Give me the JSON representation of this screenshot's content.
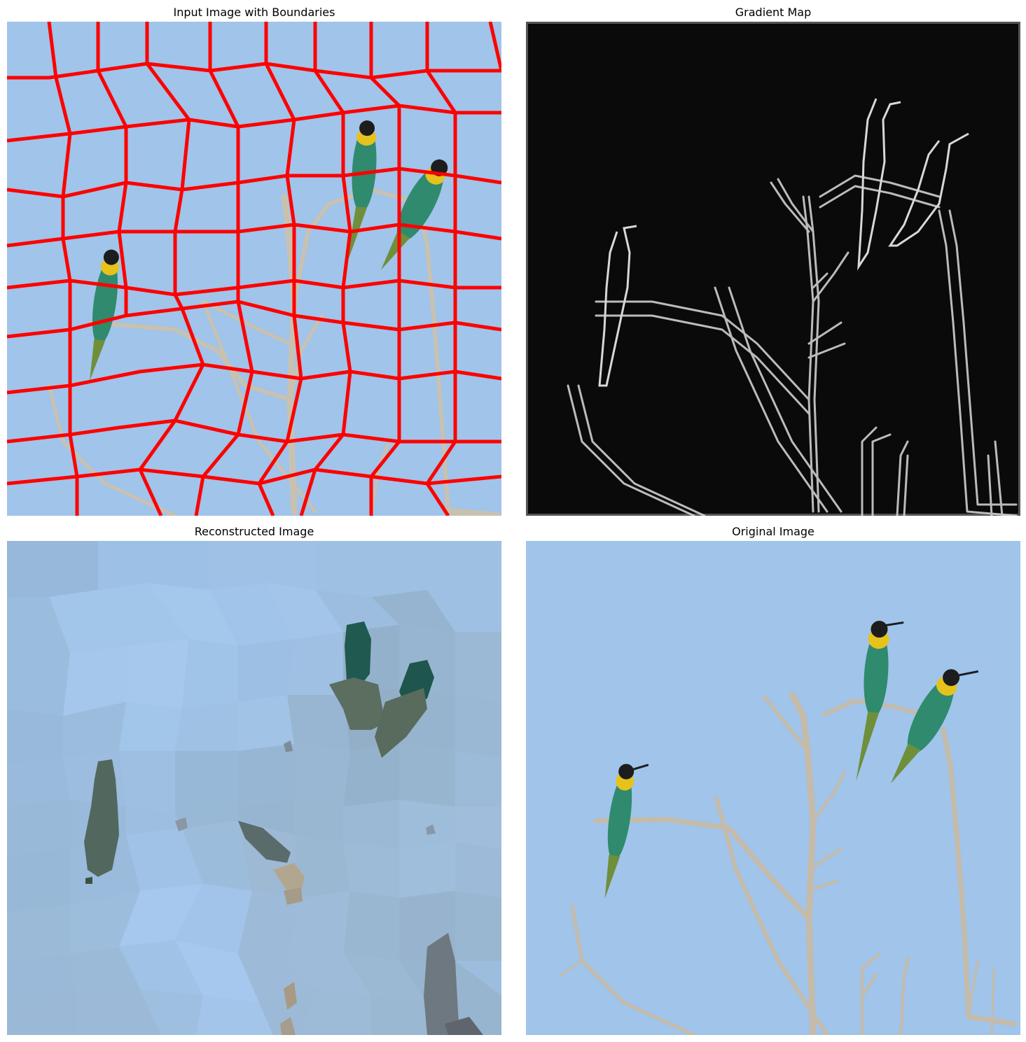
{
  "figure": {
    "panels": [
      {
        "title": "Input Image with Boundaries"
      },
      {
        "title": "Gradient Map"
      },
      {
        "title": "Reconstructed Image"
      },
      {
        "title": "Original Image"
      }
    ]
  },
  "colors": {
    "sky": "#a0c4ea",
    "boundary": "#ff0000",
    "gradient_bg": "#0a0a0a",
    "gradient_frame": "#555555",
    "edge": "#cfcfcf",
    "branch": "#c9c1b0",
    "bird_body": "#2f8a6e",
    "bird_tail": "#6f8f3a",
    "bird_throat": "#e6c21c",
    "bird_head": "#1d1d1d"
  }
}
